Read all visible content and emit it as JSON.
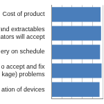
{
  "chart_data": {
    "type": "bar",
    "orientation": "horizontal",
    "categories": [
      "Cost of product",
      "and extractables\nators will accept",
      "very on schedule",
      "o accept and fix\nkage) problems",
      "ation of devices"
    ],
    "values": [
      96,
      97,
      95,
      98,
      94
    ],
    "color": "#4a7ebb",
    "xlim": [
      0,
      100
    ],
    "xticks": [
      0,
      20,
      40,
      60,
      80,
      100
    ],
    "grid": true,
    "tick_labels": "y"
  }
}
